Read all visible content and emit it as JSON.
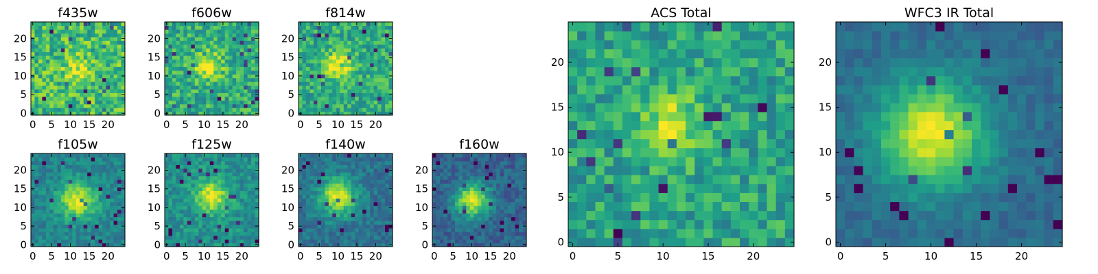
{
  "chart_data": [
    {
      "type": "heatmap",
      "title": "f435w",
      "grid_size": 25,
      "center": [
        12,
        12
      ],
      "peak_sigma": 2.5,
      "peak_amp": 0.25,
      "base": 0.68,
      "noise": 0.42,
      "seed": 11,
      "xticks": [
        "0",
        "5",
        "10",
        "15",
        "20"
      ],
      "yticks": [
        "0",
        "5",
        "10",
        "15",
        "20"
      ]
    },
    {
      "type": "heatmap",
      "title": "f606w",
      "grid_size": 25,
      "center": [
        11,
        13
      ],
      "peak_sigma": 2.5,
      "peak_amp": 0.4,
      "base": 0.62,
      "noise": 0.36,
      "seed": 22,
      "xticks": [
        "0",
        "5",
        "10",
        "15",
        "20"
      ],
      "yticks": [
        "0",
        "5",
        "10",
        "15",
        "20"
      ]
    },
    {
      "type": "heatmap",
      "title": "f814w",
      "grid_size": 25,
      "center": [
        10,
        13
      ],
      "peak_sigma": 2.3,
      "peak_amp": 0.45,
      "base": 0.62,
      "noise": 0.34,
      "seed": 33,
      "xticks": [
        "0",
        "5",
        "10",
        "15",
        "20"
      ],
      "yticks": [
        "0",
        "5",
        "10",
        "15",
        "20"
      ]
    },
    {
      "type": "heatmap",
      "title": "f105w",
      "grid_size": 25,
      "center": [
        12,
        12
      ],
      "peak_sigma": 3.5,
      "peak_amp": 0.5,
      "base": 0.45,
      "noise": 0.22,
      "seed": 44,
      "xticks": [
        "0",
        "5",
        "10",
        "15",
        "20"
      ],
      "yticks": [
        "0",
        "5",
        "10",
        "15",
        "20"
      ]
    },
    {
      "type": "heatmap",
      "title": "f125w",
      "grid_size": 25,
      "center": [
        12,
        13
      ],
      "peak_sigma": 3.2,
      "peak_amp": 0.45,
      "base": 0.5,
      "noise": 0.25,
      "seed": 55,
      "xticks": [
        "0",
        "5",
        "10",
        "15",
        "20"
      ],
      "yticks": [
        "0",
        "5",
        "10",
        "15",
        "20"
      ]
    },
    {
      "type": "heatmap",
      "title": "f140w",
      "grid_size": 25,
      "center": [
        10,
        13
      ],
      "peak_sigma": 3.5,
      "peak_amp": 0.55,
      "base": 0.38,
      "noise": 0.22,
      "seed": 66,
      "xticks": [
        "0",
        "5",
        "10",
        "15",
        "20"
      ],
      "yticks": [
        "0",
        "5",
        "10",
        "15",
        "20"
      ]
    },
    {
      "type": "heatmap",
      "title": "f160w",
      "grid_size": 25,
      "center": [
        10,
        12
      ],
      "peak_sigma": 3.2,
      "peak_amp": 0.62,
      "base": 0.32,
      "noise": 0.22,
      "seed": 77,
      "xticks": [
        "0",
        "5",
        "10",
        "15",
        "20"
      ],
      "yticks": [
        "0",
        "5",
        "10",
        "15",
        "20"
      ]
    },
    {
      "type": "heatmap",
      "title": "ACS Total",
      "grid_size": 25,
      "center": [
        11,
        13
      ],
      "peak_sigma": 2.5,
      "peak_amp": 0.35,
      "base": 0.58,
      "noise": 0.34,
      "seed": 88,
      "xticks": [
        "0",
        "5",
        "10",
        "15",
        "20"
      ],
      "yticks": [
        "0",
        "5",
        "10",
        "15",
        "20"
      ]
    },
    {
      "type": "heatmap",
      "title": "WFC3 IR Total",
      "grid_size": 25,
      "center": [
        10,
        12
      ],
      "peak_sigma": 4.2,
      "peak_amp": 0.62,
      "base": 0.35,
      "noise": 0.14,
      "seed": 99,
      "xticks": [
        "0",
        "5",
        "10",
        "15",
        "20"
      ],
      "yticks": [
        "0",
        "5",
        "10",
        "15",
        "20"
      ]
    }
  ],
  "colormap": "viridis",
  "colormap_stops": [
    "#440154",
    "#482878",
    "#3e4a89",
    "#31688e",
    "#26828e",
    "#1f9e89",
    "#35b779",
    "#6ece58",
    "#b5de2b",
    "#fde725"
  ]
}
